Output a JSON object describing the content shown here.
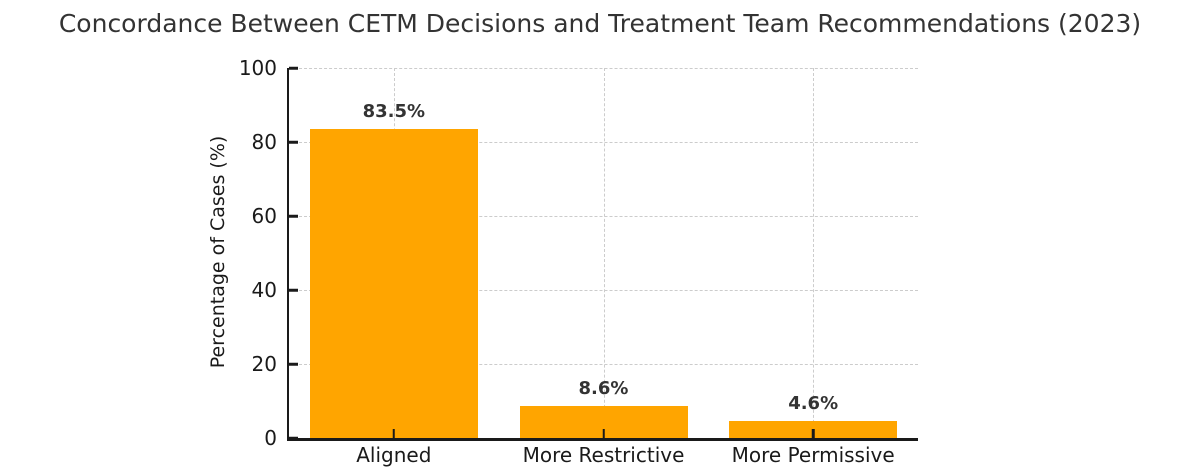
{
  "chart_data": {
    "type": "bar",
    "title": "Concordance Between CETM Decisions and Treatment Team Recommendations (2023)",
    "categories": [
      "Aligned",
      "More Restrictive",
      "More Permissive"
    ],
    "values": [
      83.5,
      8.6,
      4.6
    ],
    "value_labels": [
      "83.5%",
      "8.6%",
      "4.6%"
    ],
    "xlabel": "",
    "ylabel": "Percentage of Cases (%)",
    "ylim": [
      0,
      100
    ],
    "yticks": [
      "0",
      "20",
      "40",
      "60",
      "80",
      "100"
    ],
    "grid": {
      "horizontal": true,
      "vertical": true,
      "style": "dashed"
    },
    "legend_position": "none",
    "colors": {
      "bar": "#FFA500",
      "axis": "#1a1a1a",
      "grid": "#cccccc",
      "text": "#333333"
    }
  }
}
